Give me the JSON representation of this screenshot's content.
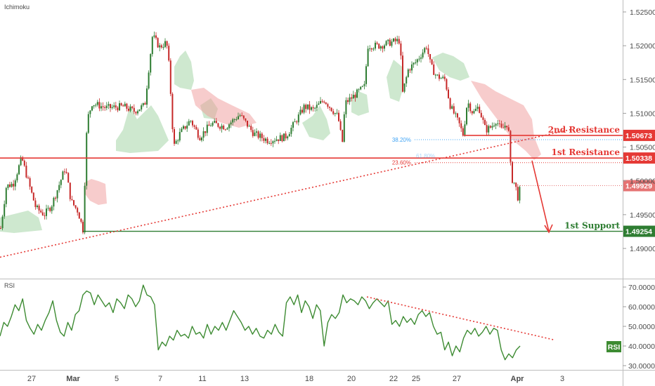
{
  "indicator_label": "Ichimoku",
  "rsi_label": "RSI",
  "rsi_tag": "RSI",
  "colors": {
    "up": "#2e7d32",
    "down": "#c62828",
    "cloud_green": "#a5d6a7",
    "cloud_red": "#ef9a9a",
    "resistance": "#e53935",
    "support": "#2e7d32",
    "fib": "#42a5f5",
    "rsi": "#3d8b32",
    "last_price": "#e57373"
  },
  "chart_data": [
    {
      "type": "candlestick",
      "panel": "price",
      "y_axis_ticks": [
        "1.52500",
        "1.52000",
        "1.51500",
        "1.51000",
        "1.50500",
        "1.50000",
        "1.49500",
        "1.49000"
      ],
      "ylim": [
        1.4865,
        1.5265
      ],
      "x_axis_labels": [
        "27",
        "Mar",
        "5",
        "7",
        "11",
        "13",
        "18",
        "20",
        "22",
        "25",
        "27",
        "Apr",
        "3"
      ],
      "bold_x_labels": [
        "Mar",
        "Apr"
      ],
      "price_tags": [
        {
          "label": "1.50673",
          "value": 1.50673,
          "role": "resistance"
        },
        {
          "label": "1.50338",
          "value": 1.50338,
          "role": "resistance"
        },
        {
          "label": "1.49929",
          "value": 1.49929,
          "role": "last"
        },
        {
          "label": "1.49254",
          "value": 1.49254,
          "role": "support"
        }
      ],
      "levels": [
        {
          "label": "2nd Resistance",
          "value": 1.50673
        },
        {
          "label": "1st Resistance",
          "value": 1.50338
        },
        {
          "label": "1st Support",
          "value": 1.49254
        }
      ],
      "fibonacci": [
        {
          "label": "38.20%",
          "value": 1.5061
        },
        {
          "label": "23.60%",
          "value": 1.5027
        },
        {
          "label": "61.80%",
          "value": 1.5033
        }
      ],
      "trendline_dates": [
        "2019-02-25",
        "2019-04-02"
      ],
      "trendline_values": [
        1.4887,
        1.5076
      ],
      "projection_values": [
        1.503,
        1.4925
      ],
      "last_price": 1.49929
    },
    {
      "type": "line",
      "panel": "rsi",
      "y_axis_ticks": [
        "70.0000",
        "60.0000",
        "50.0000",
        "40.0000",
        "30.0000"
      ],
      "ylim": [
        27,
        74
      ],
      "trendline_values": [
        65,
        43
      ],
      "series": [
        {
          "values": [
            45,
            52,
            50,
            55,
            61,
            58,
            64,
            53,
            49,
            46,
            51,
            48,
            53,
            57,
            63,
            53,
            47,
            45,
            52,
            48,
            56,
            58,
            66,
            68,
            67,
            61,
            66,
            63,
            60,
            62,
            57,
            64,
            62,
            59,
            66,
            64,
            60,
            63,
            71,
            66,
            65,
            61,
            38,
            42,
            40,
            45,
            43,
            48,
            45,
            46,
            44,
            50,
            46,
            47,
            44,
            51,
            46,
            50,
            48,
            52,
            48,
            53,
            58,
            55,
            52,
            48,
            50,
            46,
            49,
            45,
            44,
            48,
            46,
            51,
            47,
            45,
            62,
            65,
            61,
            66,
            57,
            63,
            60,
            54,
            61,
            58,
            40,
            52,
            56,
            54,
            57,
            66,
            62,
            64,
            63,
            61,
            65,
            63,
            59,
            62,
            64,
            62,
            60,
            63,
            51,
            53,
            50,
            55,
            52,
            54,
            51,
            56,
            58,
            55,
            57,
            50,
            46,
            47,
            38,
            42,
            35,
            40,
            37,
            44,
            48,
            46,
            49,
            45,
            47,
            50,
            46,
            49,
            48,
            38,
            33,
            36,
            34,
            38,
            40
          ]
        }
      ]
    }
  ]
}
